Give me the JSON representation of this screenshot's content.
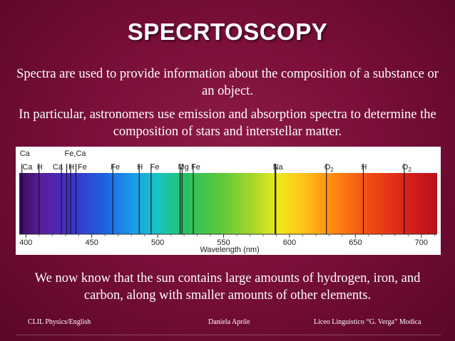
{
  "slide": {
    "title": "SPECRTOSCOPY",
    "paragraph1": "Spectra are used to provide information about the composition of a substance or an object.",
    "paragraph2": "In particular, astronomers use emission and absorption spectra to determine the composition of stars and interstellar matter.",
    "paragraph3": "We now know that the sun contains large amounts of hydrogen, iron, and carbon, along with smaller amounts of other elements."
  },
  "spectrum": {
    "axis_label": "Wavelength (nm)",
    "tick_labels": [
      "400",
      "450",
      "500",
      "550",
      "600",
      "650",
      "700"
    ],
    "range": [
      395,
      712
    ],
    "lines": [
      {
        "wl": 397
      },
      {
        "wl": 410
      },
      {
        "wl": 427
      },
      {
        "wl": 431
      },
      {
        "wl": 434
      },
      {
        "wl": 438
      },
      {
        "wl": 466
      },
      {
        "wl": 486
      },
      {
        "wl": 495
      },
      {
        "wl": 517
      },
      {
        "wl": 518.5
      },
      {
        "wl": 527
      },
      {
        "wl": 589
      },
      {
        "wl": 589.6
      },
      {
        "wl": 628
      },
      {
        "wl": 656
      },
      {
        "wl": 687
      }
    ],
    "element_labels": [
      {
        "text": "Ca",
        "wl": 397,
        "row": "top"
      },
      {
        "text": "Fe,Ca",
        "wl": 431,
        "row": "top"
      },
      {
        "text": "Ca",
        "wl": 399,
        "row": "low"
      },
      {
        "text": "H",
        "wl": 410,
        "row": "low"
      },
      {
        "text": "Ca",
        "wl": 422,
        "row": "low"
      },
      {
        "text": "H",
        "wl": 434,
        "row": "low"
      },
      {
        "text": "Fe",
        "wl": 441,
        "row": "low"
      },
      {
        "text": "Fe",
        "wl": 466,
        "row": "low"
      },
      {
        "text": "H",
        "wl": 486,
        "row": "low"
      },
      {
        "text": "Fe",
        "wl": 496,
        "row": "low"
      },
      {
        "text": "Mg",
        "wl": 517,
        "row": "low"
      },
      {
        "text": "Fe",
        "wl": 527,
        "row": "low"
      },
      {
        "text": "Na",
        "wl": 589,
        "row": "low"
      },
      {
        "text": "O",
        "sub": "2",
        "wl": 628,
        "row": "low"
      },
      {
        "text": "H",
        "wl": 656,
        "row": "low"
      },
      {
        "text": "O",
        "sub": "2",
        "wl": 687,
        "row": "low"
      }
    ]
  },
  "footer": {
    "left": "CLIL Physics/English",
    "center": "Daniela Aprile",
    "right": "Liceo Linguistico “G. Verga” Modica"
  }
}
